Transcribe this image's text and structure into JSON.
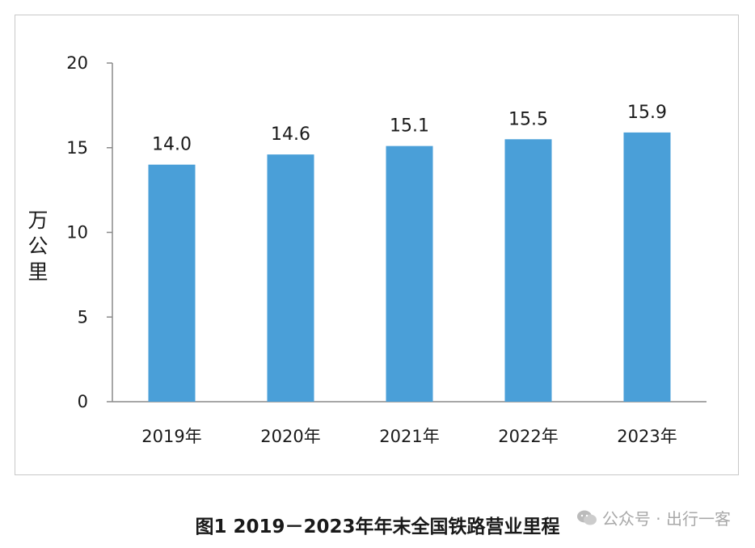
{
  "chart_data": {
    "type": "bar",
    "categories": [
      "2019年",
      "2020年",
      "2021年",
      "2022年",
      "2023年"
    ],
    "values": [
      14.0,
      14.6,
      15.1,
      15.5,
      15.9
    ],
    "data_labels": [
      "14.0",
      "14.6",
      "15.1",
      "15.5",
      "15.9"
    ],
    "ylabel": "万公里",
    "ylim": [
      0,
      20
    ],
    "yticks": [
      0,
      5,
      10,
      15,
      20
    ],
    "grid": false,
    "legend": "none",
    "bar_color": "#4a9fd8"
  },
  "caption": "图1  2019－2023年年末全国铁路营业里程",
  "watermark": {
    "text": "公众号 · 出行一客",
    "icon": "wechat-icon"
  }
}
